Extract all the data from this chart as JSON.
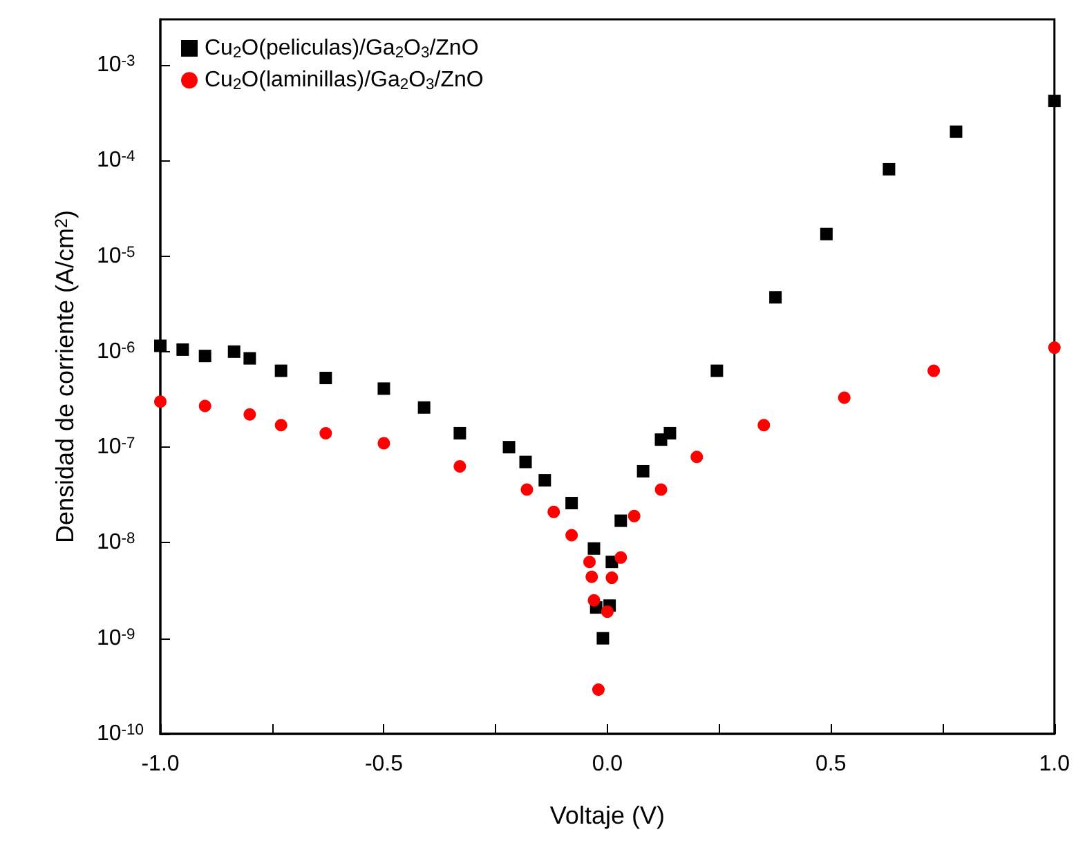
{
  "chart_data": {
    "type": "scatter",
    "xlabel": "Voltaje (V)",
    "ylabel": "Densidad de corriente (A/cm$^{2}$)",
    "xlim": [
      -1,
      1
    ],
    "xticks": [
      {
        "value": -1,
        "label": "-1.0"
      },
      {
        "value": -0.75,
        "label": null
      },
      {
        "value": -0.5,
        "label": "-0.5"
      },
      {
        "value": -0.25,
        "label": null
      },
      {
        "value": 0,
        "label": "0.0"
      },
      {
        "value": 0.25,
        "label": null
      },
      {
        "value": 0.5,
        "label": "0.5"
      },
      {
        "value": 0.75,
        "label": null
      },
      {
        "value": 1,
        "label": "1.0"
      }
    ],
    "ylim": [
      1e-10,
      0.003
    ],
    "yticks": [
      {
        "value": 1e-10,
        "label": "10$^{-10}$"
      },
      {
        "value": 1e-09,
        "label": "10$^{-9}$"
      },
      {
        "value": 1e-08,
        "label": "10$^{-8}$"
      },
      {
        "value": 1e-07,
        "label": "10$^{-7}$"
      },
      {
        "value": 1e-06,
        "label": "10$^{-6}$"
      },
      {
        "value": 1e-05,
        "label": "10$^{-5}$"
      },
      {
        "value": 0.0001,
        "label": "10$^{-4}$"
      },
      {
        "value": 0.001,
        "label": "10$^{-3}$"
      }
    ],
    "log": "y",
    "grid": false,
    "legend": "top left",
    "series": [
      {
        "name": "Cu$_{2}$O(peliculas)/Ga$_{2}$O$_{3}$/ZnO",
        "color": "#000000",
        "marker": "square",
        "x": [
          -1,
          -0.95,
          -0.9,
          -0.835,
          -0.8,
          -0.73,
          -0.63,
          -0.5,
          -0.41,
          -0.33,
          -0.22,
          -0.183,
          -0.14,
          -0.08,
          -0.03,
          -0.025,
          -0.01,
          0.005,
          0.01,
          0.03,
          0.08,
          0.12,
          0.14,
          0.245,
          0.376,
          0.49,
          0.63,
          0.78,
          1.0
        ],
        "values": [
          1.15e-06,
          1.05e-06,
          9e-07,
          1e-06,
          8.5e-07,
          6.3e-07,
          5.3e-07,
          4.1e-07,
          2.6e-07,
          1.4e-07,
          1e-07,
          7e-08,
          4.5e-08,
          2.6e-08,
          8.7e-09,
          2.1e-09,
          1e-09,
          2.2e-09,
          6.3e-09,
          1.7e-08,
          5.6e-08,
          1.2e-07,
          1.4e-07,
          6.3e-07,
          3.7e-06,
          1.7e-05,
          8.1e-05,
          0.0002,
          0.00042
        ]
      },
      {
        "name": "Cu$_{2}$O(laminillas)/Ga$_{2}$O$_{3}$/ZnO",
        "color": "#ff0000",
        "marker": "circle",
        "x": [
          -1,
          -0.9,
          -0.8,
          -0.73,
          -0.63,
          -0.5,
          -0.33,
          -0.18,
          -0.12,
          -0.08,
          -0.04,
          -0.035,
          -0.03,
          -0.02,
          0,
          0.01,
          0.03,
          0.06,
          0.12,
          0.2,
          0.35,
          0.53,
          0.73,
          1.0
        ],
        "values": [
          3e-07,
          2.7e-07,
          2.2e-07,
          1.7e-07,
          1.4e-07,
          1.1e-07,
          6.3e-08,
          3.6e-08,
          2.1e-08,
          1.2e-08,
          6.3e-09,
          4.4e-09,
          2.5e-09,
          2.9e-10,
          1.9e-09,
          4.3e-09,
          7e-09,
          1.9e-08,
          3.6e-08,
          7.9e-08,
          1.7e-07,
          3.3e-07,
          6.3e-07,
          1.1e-06
        ]
      }
    ]
  }
}
